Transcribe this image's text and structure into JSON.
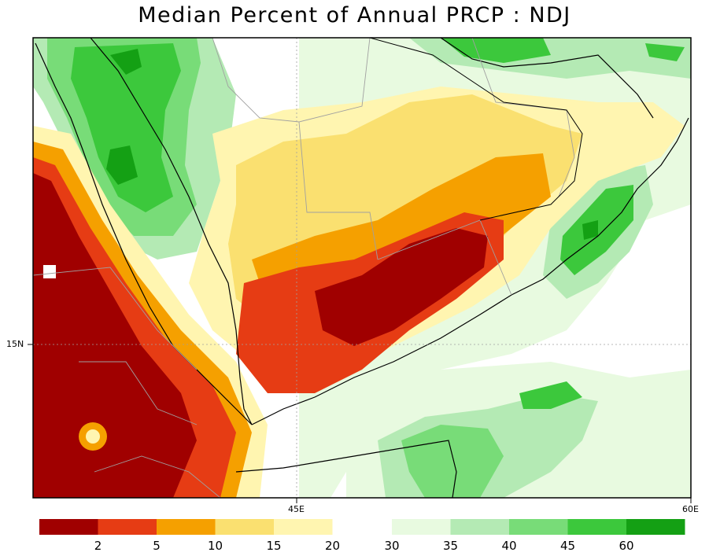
{
  "title": "Median Percent of Annual PRCP  :  NDJ",
  "axes": {
    "lon_labels": [
      "45E",
      "60E"
    ],
    "lat_labels": [
      "15N"
    ]
  },
  "legend": {
    "levels": [
      "2",
      "5",
      "10",
      "15",
      "20",
      "30",
      "35",
      "40",
      "45",
      "60"
    ],
    "colors": [
      "#a00000",
      "#e63c14",
      "#f5a000",
      "#fae070",
      "#fff5b0",
      "#e8fae0",
      "#b4eab4",
      "#78dc78",
      "#3cc83c",
      "#14a014"
    ]
  },
  "colors": {
    "ocean": "#ffffff",
    "coast": "#000000",
    "border": "#a0a0a0",
    "grid": "#a0a0a0"
  }
}
